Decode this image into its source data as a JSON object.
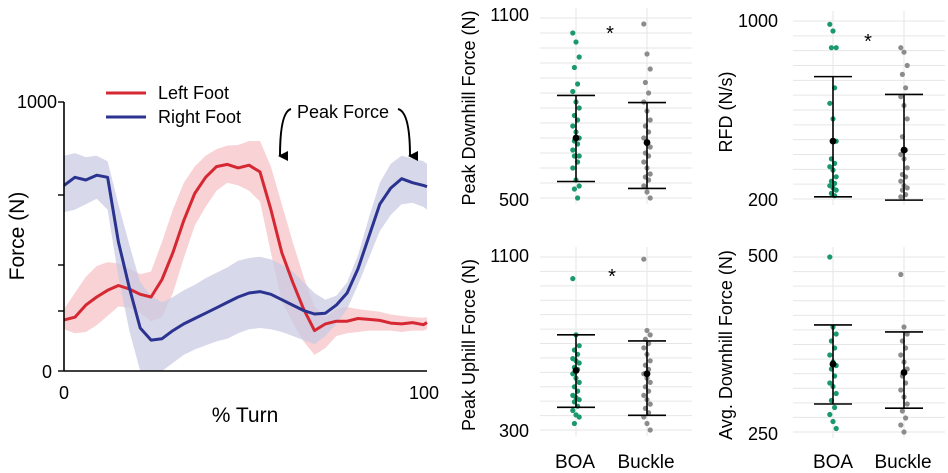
{
  "chart_data": [
    {
      "type": "line",
      "title": "",
      "xlabel": "% Turn",
      "ylabel": "Force (N)",
      "xlim": [
        0,
        100
      ],
      "ylim": [
        0,
        1000
      ],
      "x_ticks": [
        0,
        100
      ],
      "y_ticks": [
        0,
        1000
      ],
      "x": [
        0,
        3,
        6,
        9,
        12,
        15,
        18,
        21,
        24,
        27,
        30,
        33,
        36,
        39,
        42,
        45,
        48,
        51,
        54,
        57,
        60,
        63,
        66,
        69,
        72,
        75,
        78,
        81,
        84,
        87,
        90,
        93,
        96,
        99,
        100
      ],
      "series": [
        {
          "name": "Left Foot",
          "color": "#d62833",
          "band_color": "#f6c3c6",
          "values": [
            190,
            200,
            245,
            275,
            300,
            318,
            305,
            285,
            275,
            340,
            440,
            560,
            660,
            720,
            760,
            768,
            755,
            765,
            740,
            600,
            440,
            330,
            230,
            150,
            175,
            185,
            185,
            195,
            192,
            188,
            178,
            175,
            180,
            172,
            180
          ],
          "band_upper": [
            230,
            290,
            350,
            390,
            405,
            400,
            380,
            360,
            370,
            480,
            600,
            700,
            760,
            800,
            825,
            838,
            840,
            855,
            855,
            760,
            620,
            480,
            350,
            240,
            200,
            230,
            238,
            230,
            225,
            220,
            210,
            205,
            200,
            198,
            200
          ],
          "band_lower": [
            155,
            140,
            145,
            170,
            205,
            240,
            235,
            215,
            185,
            200,
            290,
            420,
            540,
            610,
            670,
            700,
            690,
            670,
            630,
            440,
            260,
            180,
            110,
            60,
            85,
            130,
            140,
            145,
            150,
            150,
            150,
            145,
            150,
            150,
            155
          ]
        },
        {
          "name": "Right Foot",
          "color": "#2b3390",
          "band_color": "#c9cbe3",
          "values": [
            690,
            720,
            710,
            728,
            720,
            480,
            310,
            160,
            115,
            120,
            150,
            175,
            195,
            215,
            235,
            255,
            275,
            290,
            295,
            285,
            265,
            245,
            225,
            212,
            215,
            245,
            290,
            380,
            500,
            620,
            680,
            715,
            700,
            690,
            685
          ],
          "band_upper": [
            800,
            810,
            795,
            800,
            780,
            620,
            470,
            330,
            280,
            255,
            275,
            300,
            320,
            345,
            365,
            385,
            410,
            420,
            425,
            415,
            395,
            370,
            330,
            290,
            265,
            280,
            330,
            430,
            570,
            700,
            770,
            800,
            790,
            780,
            770
          ],
          "band_lower": [
            590,
            600,
            620,
            640,
            600,
            350,
            150,
            0,
            0,
            0,
            30,
            60,
            80,
            95,
            110,
            120,
            140,
            155,
            160,
            155,
            145,
            130,
            115,
            100,
            130,
            175,
            230,
            320,
            420,
            520,
            580,
            620,
            625,
            610,
            600
          ]
        }
      ],
      "legend": {
        "position": "top-left",
        "entries": [
          "Left Foot",
          "Right Foot"
        ]
      },
      "annotations": [
        "Peak Force"
      ]
    },
    {
      "type": "scatter",
      "ylabel": "Peak Downhill Force (N)",
      "ylim": [
        500,
        1100
      ],
      "y_ticks": [
        500,
        1100
      ],
      "categories": [
        "BOA",
        "Buckle"
      ],
      "significance": "*",
      "groups": [
        {
          "name": "BOA",
          "color": "#1a9870",
          "mean": 700,
          "ci_upper": 842,
          "ci_lower": 555,
          "points": [
            1050,
            1020,
            970,
            935,
            880,
            855,
            820,
            800,
            775,
            760,
            740,
            720,
            700,
            690,
            680,
            660,
            640,
            640,
            640,
            620,
            600,
            560,
            540,
            530,
            500
          ]
        },
        {
          "name": "Buckle",
          "color": "#8c8c8c",
          "mean": 685,
          "ci_upper": 818,
          "ci_lower": 532,
          "points": [
            1080,
            980,
            930,
            885,
            850,
            820,
            790,
            760,
            740,
            720,
            700,
            680,
            670,
            650,
            640,
            620,
            600,
            580,
            570,
            560,
            540,
            520,
            500
          ]
        }
      ]
    },
    {
      "type": "scatter",
      "ylabel": "RFD (N/s)",
      "ylim": [
        200,
        1000
      ],
      "y_ticks": [
        200,
        1000
      ],
      "categories": [
        "BOA",
        "Buckle"
      ],
      "significance": "*",
      "groups": [
        {
          "name": "BOA",
          "color": "#1a9870",
          "mean": 460,
          "ci_upper": 750,
          "ci_lower": 210,
          "points": [
            985,
            955,
            880,
            880,
            700,
            630,
            560,
            460,
            380,
            360,
            345,
            330,
            300,
            280,
            270,
            260,
            250,
            240,
            225,
            215
          ]
        },
        {
          "name": "Buckle",
          "color": "#8c8c8c",
          "mean": 420,
          "ci_upper": 670,
          "ci_lower": 195,
          "points": [
            880,
            860,
            800,
            760,
            700,
            660,
            620,
            560,
            480,
            420,
            400,
            380,
            340,
            310,
            300,
            280,
            260,
            250,
            240,
            220,
            210
          ]
        }
      ]
    },
    {
      "type": "scatter",
      "ylabel": "Peak Uphill Force (N)",
      "ylim": [
        300,
        1100
      ],
      "y_ticks": [
        300,
        1100
      ],
      "categories": [
        "BOA",
        "Buckle"
      ],
      "significance": "*",
      "groups": [
        {
          "name": "BOA",
          "color": "#1a9870",
          "mean": 575,
          "ci_upper": 740,
          "ci_lower": 405,
          "points": [
            1000,
            740,
            690,
            670,
            650,
            630,
            620,
            610,
            590,
            580,
            560,
            540,
            520,
            500,
            480,
            460,
            450,
            440,
            430,
            410,
            390,
            370,
            360,
            330
          ]
        },
        {
          "name": "Buckle",
          "color": "#8c8c8c",
          "mean": 560,
          "ci_upper": 712,
          "ci_lower": 368,
          "points": [
            1090,
            760,
            740,
            720,
            700,
            680,
            650,
            620,
            600,
            580,
            560,
            540,
            520,
            500,
            480,
            460,
            440,
            420,
            400,
            380,
            360,
            330,
            300
          ]
        }
      ]
    },
    {
      "type": "scatter",
      "ylabel": "Avg. Downhill Force (N)",
      "ylim": [
        250,
        500
      ],
      "y_ticks": [
        250,
        500
      ],
      "categories": [
        "BOA",
        "Buckle"
      ],
      "significance": "",
      "groups": [
        {
          "name": "BOA",
          "color": "#1a9870",
          "mean": 347,
          "ci_upper": 403,
          "ci_lower": 290,
          "points": [
            500,
            400,
            390,
            380,
            370,
            360,
            350,
            345,
            340,
            330,
            320,
            315,
            305,
            295,
            285,
            275,
            265,
            255
          ]
        },
        {
          "name": "Buckle",
          "color": "#8c8c8c",
          "mean": 335,
          "ci_upper": 393,
          "ci_lower": 284,
          "points": [
            475,
            400,
            390,
            380,
            370,
            360,
            350,
            340,
            330,
            320,
            310,
            300,
            290,
            280,
            270,
            260,
            250
          ]
        }
      ]
    }
  ]
}
